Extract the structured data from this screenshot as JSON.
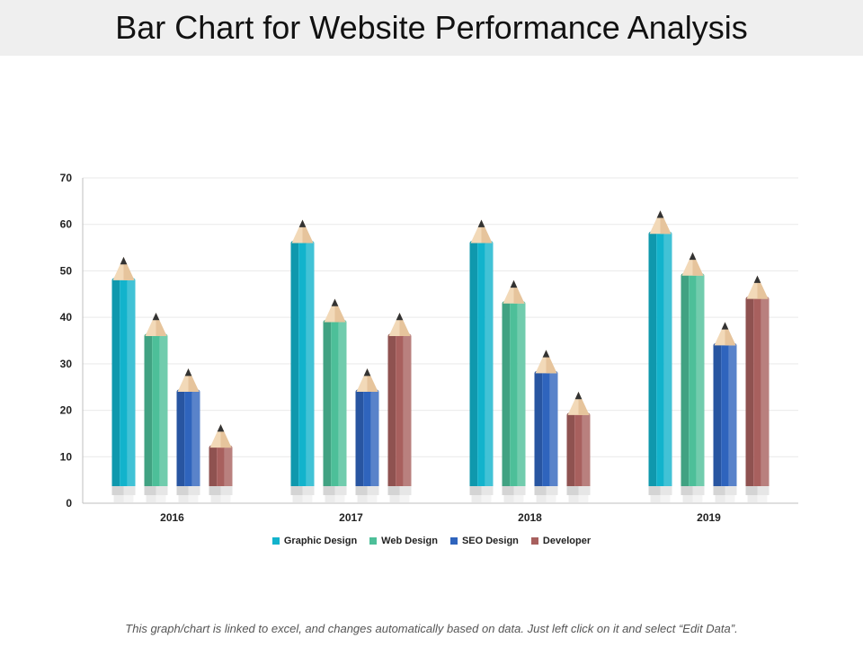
{
  "title": "Bar Chart for Website Performance Analysis",
  "footer_note": "This graph/chart is linked to excel, and changes automatically based on data.  Just left click on it and select “Edit Data”.",
  "colors": {
    "graphic_design": "#12b3cc",
    "web_design": "#4dbf99",
    "seo_design": "#2f64bd",
    "developer": "#a8605e"
  },
  "chart_data": {
    "type": "bar",
    "style": "pencil",
    "categories": [
      "2016",
      "2017",
      "2018",
      "2019"
    ],
    "series": [
      {
        "name": "Graphic Design",
        "values": [
          53,
          61,
          61,
          63
        ],
        "color_key": "graphic_design"
      },
      {
        "name": "Web Design",
        "values": [
          41,
          44,
          48,
          54
        ],
        "color_key": "web_design"
      },
      {
        "name": "SEO Design",
        "values": [
          29,
          29,
          33,
          39
        ],
        "color_key": "seo_design"
      },
      {
        "name": "Developer",
        "values": [
          17,
          41,
          24,
          49
        ],
        "color_key": "developer"
      }
    ],
    "ylim": [
      0,
      70
    ],
    "yticks": [
      0,
      10,
      20,
      30,
      40,
      50,
      60,
      70
    ],
    "grid": true,
    "legend": "bottom"
  }
}
